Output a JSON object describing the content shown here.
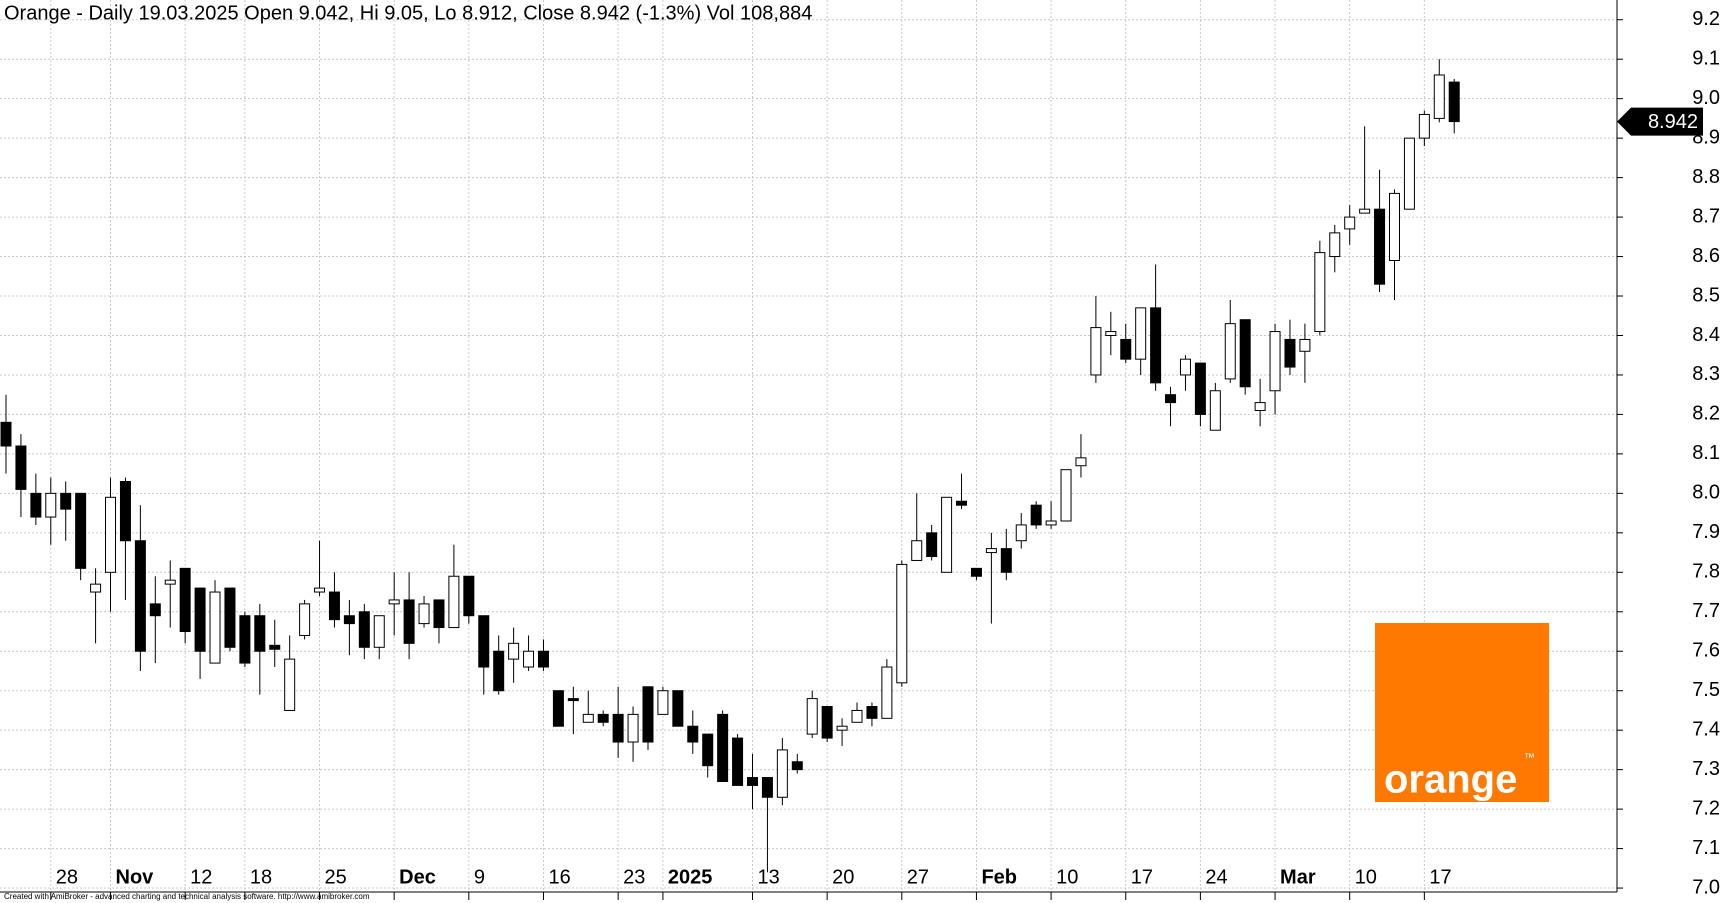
{
  "chart_data": {
    "type": "candlestick",
    "title": "Orange - Daily 19.03.2025 Open 9.042, Hi 9.05, Lo 8.912, Close 8.942 (-1.3%) Vol 108,884",
    "categories": [
      null,
      null,
      null,
      "28",
      null,
      null,
      null,
      "Nov",
      null,
      null,
      null,
      null,
      "12",
      null,
      null,
      null,
      "18",
      null,
      null,
      null,
      null,
      "25",
      null,
      null,
      null,
      null,
      "Dec",
      null,
      null,
      null,
      null,
      "9",
      null,
      null,
      null,
      null,
      "16",
      null,
      null,
      null,
      null,
      "23",
      null,
      null,
      "2025",
      null,
      null,
      null,
      null,
      null,
      "13",
      null,
      null,
      null,
      null,
      "20",
      null,
      null,
      null,
      null,
      "27",
      null,
      null,
      null,
      null,
      "Feb",
      null,
      null,
      null,
      null,
      "10",
      null,
      null,
      null,
      null,
      "17",
      null,
      null,
      null,
      null,
      "24",
      null,
      null,
      null,
      null,
      "Mar",
      null,
      null,
      null,
      null,
      "10",
      null,
      null,
      null,
      null,
      "17",
      null,
      null
    ],
    "open": [
      8.18,
      8.12,
      8.0,
      7.94,
      8.0,
      8.0,
      7.75,
      7.8,
      8.03,
      7.88,
      7.72,
      7.77,
      7.81,
      7.76,
      7.57,
      7.76,
      7.69,
      7.69,
      7.615,
      7.45,
      7.64,
      7.75,
      7.75,
      7.69,
      7.7,
      7.61,
      7.72,
      7.73,
      7.67,
      7.73,
      7.66,
      7.79,
      7.69,
      7.6,
      7.58,
      7.56,
      7.6,
      7.5,
      7.48,
      7.42,
      7.44,
      7.44,
      7.37,
      7.51,
      7.44,
      7.5,
      7.41,
      7.39,
      7.44,
      7.38,
      7.28,
      7.28,
      7.23,
      7.32,
      7.39,
      7.46,
      7.4,
      7.42,
      7.46,
      7.43,
      7.52,
      7.83,
      7.9,
      7.8,
      7.98,
      7.81,
      7.85,
      7.86,
      7.88,
      7.97,
      7.92,
      7.93,
      8.07,
      8.3,
      8.4,
      8.39,
      8.34,
      8.47,
      8.25,
      8.3,
      8.33,
      8.16,
      8.29,
      8.44,
      8.21,
      8.26,
      8.39,
      8.36,
      8.41,
      8.6,
      8.67,
      8.71,
      8.72,
      8.59,
      8.72,
      8.9,
      8.95,
      9.042
    ],
    "high": [
      8.25,
      8.15,
      8.05,
      8.04,
      8.03,
      8.0,
      7.81,
      8.04,
      8.04,
      7.97,
      7.79,
      7.83,
      7.81,
      7.76,
      7.78,
      7.76,
      7.7,
      7.72,
      7.68,
      7.64,
      7.73,
      7.88,
      7.8,
      7.73,
      7.72,
      7.69,
      7.8,
      7.8,
      7.74,
      7.73,
      7.87,
      7.79,
      7.69,
      7.64,
      7.66,
      7.64,
      7.63,
      7.5,
      7.51,
      7.5,
      7.45,
      7.51,
      7.46,
      7.51,
      7.51,
      7.5,
      7.45,
      7.39,
      7.45,
      7.39,
      7.34,
      7.28,
      7.38,
      7.34,
      7.5,
      7.46,
      7.43,
      7.47,
      7.47,
      7.58,
      7.83,
      8.0,
      7.92,
      7.99,
      8.05,
      7.81,
      7.9,
      7.91,
      7.95,
      7.98,
      7.98,
      8.06,
      8.15,
      8.5,
      8.46,
      8.43,
      8.47,
      8.58,
      8.27,
      8.35,
      8.33,
      8.28,
      8.49,
      8.44,
      8.29,
      8.43,
      8.44,
      8.43,
      8.64,
      8.68,
      8.73,
      8.93,
      8.82,
      8.77,
      8.9,
      8.97,
      9.1,
      9.05
    ],
    "low": [
      8.05,
      7.94,
      7.92,
      7.87,
      7.88,
      7.78,
      7.62,
      7.7,
      7.73,
      7.55,
      7.57,
      7.66,
      7.62,
      7.53,
      7.57,
      7.6,
      7.56,
      7.49,
      7.56,
      7.45,
      7.63,
      7.74,
      7.66,
      7.59,
      7.58,
      7.58,
      7.64,
      7.58,
      7.66,
      7.62,
      7.66,
      7.67,
      7.49,
      7.49,
      7.52,
      7.55,
      7.55,
      7.41,
      7.39,
      7.42,
      7.41,
      7.33,
      7.32,
      7.35,
      7.44,
      7.41,
      7.34,
      7.28,
      7.27,
      7.26,
      7.2,
      7.04,
      7.21,
      7.29,
      7.38,
      7.37,
      7.36,
      7.42,
      7.41,
      7.43,
      7.51,
      7.83,
      7.83,
      7.8,
      7.96,
      7.78,
      7.67,
      7.78,
      7.86,
      7.91,
      7.91,
      7.93,
      8.04,
      8.28,
      8.35,
      8.33,
      8.3,
      8.26,
      8.17,
      8.26,
      8.17,
      8.16,
      8.28,
      8.25,
      8.17,
      8.2,
      8.3,
      8.28,
      8.4,
      8.56,
      8.63,
      8.71,
      8.51,
      8.49,
      8.72,
      8.88,
      8.94,
      8.912
    ],
    "close": [
      8.12,
      8.01,
      7.94,
      8.0,
      7.96,
      7.81,
      7.77,
      7.99,
      7.88,
      7.6,
      7.69,
      7.78,
      7.65,
      7.6,
      7.75,
      7.61,
      7.57,
      7.6,
      7.605,
      7.58,
      7.72,
      7.76,
      7.68,
      7.67,
      7.61,
      7.69,
      7.73,
      7.62,
      7.72,
      7.66,
      7.79,
      7.69,
      7.56,
      7.5,
      7.62,
      7.6,
      7.56,
      7.41,
      7.475,
      7.44,
      7.42,
      7.37,
      7.44,
      7.37,
      7.5,
      7.41,
      7.37,
      7.31,
      7.27,
      7.26,
      7.26,
      7.23,
      7.35,
      7.3,
      7.48,
      7.38,
      7.41,
      7.45,
      7.43,
      7.56,
      7.82,
      7.88,
      7.84,
      7.99,
      7.97,
      7.79,
      7.86,
      7.8,
      7.92,
      7.92,
      7.93,
      8.06,
      8.09,
      8.42,
      8.41,
      8.34,
      8.47,
      8.28,
      8.23,
      8.34,
      8.2,
      8.26,
      8.43,
      8.27,
      8.23,
      8.41,
      8.32,
      8.39,
      8.61,
      8.66,
      8.7,
      8.72,
      8.53,
      8.76,
      8.9,
      8.96,
      9.06,
      8.942
    ],
    "up_color": "#ffffff",
    "down_color": "#000000",
    "last_price": 8.942,
    "ylim": [
      6.99,
      9.25
    ],
    "yticks": [
      {
        "value": 7.0,
        "label": "7.0"
      },
      7.1,
      7.2,
      7.3,
      7.4,
      7.5,
      7.6,
      7.7,
      7.8,
      7.9,
      {
        "value": 8.0,
        "label": "8.0"
      },
      8.1,
      8.2,
      8.3,
      8.4,
      8.5,
      8.6,
      8.7,
      8.8,
      8.9,
      {
        "value": 9.0,
        "label": "9.0"
      },
      9.1,
      9.2
    ],
    "grid": true,
    "logo_text": "orange",
    "logo_mark": "™",
    "logo_color": "#ff7900",
    "footer": "Created with AmiBroker - advanced charting and technical analysis software. http://www.amibroker.com"
  }
}
